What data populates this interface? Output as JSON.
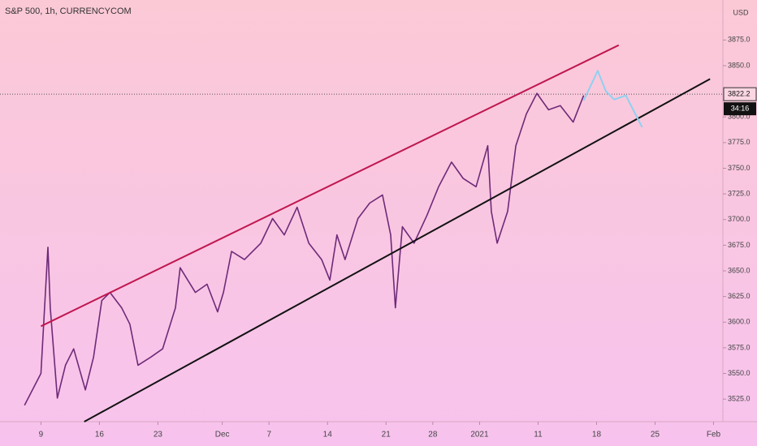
{
  "chart_data": {
    "type": "line",
    "title": "S&P 500, 1h, CURRENCYCOM",
    "currency": "USD",
    "color": "#6e2a78",
    "x": [
      -1.4,
      0,
      0.6,
      0.8,
      1.4,
      2.1,
      2.8,
      3.8,
      4.5,
      5.2,
      5.9,
      6.9,
      7.6,
      8.3,
      9.4,
      10.4,
      11.5,
      11.9,
      13.2,
      14.2,
      15.1,
      15.6,
      16.3,
      17.4,
      18.8,
      19.8,
      20.8,
      21.9,
      22.9,
      24.0,
      24.7,
      25.3,
      26.0,
      27.1,
      28.1,
      29.2,
      29.9,
      30.3,
      30.9,
      31.9,
      33.0,
      34.0,
      35.1,
      36.1,
      37.2,
      38.2,
      38.5,
      39.0,
      39.9,
      40.6,
      41.5,
      42.4,
      43.4,
      44.4,
      45.5,
      46.4
    ],
    "values": [
      3519,
      3550,
      3673,
      3614,
      3526,
      3558,
      3574,
      3534,
      3566,
      3621,
      3629,
      3614,
      3598,
      3558,
      3566,
      3574,
      3614,
      3653,
      3629,
      3637,
      3610,
      3629,
      3669,
      3661,
      3677,
      3701,
      3685,
      3712,
      3677,
      3661,
      3641,
      3685,
      3661,
      3701,
      3716,
      3724,
      3685,
      3614,
      3693,
      3677,
      3704,
      3732,
      3756,
      3740,
      3732,
      3772,
      3708,
      3677,
      3708,
      3772,
      3803,
      3823,
      3807,
      3811,
      3795,
      3821
    ],
    "trend_lines": [
      {
        "color": "#c0174f",
        "x": [
          0,
          49.4
        ],
        "values": [
          3596,
          3870
        ]
      },
      {
        "color": "#111111",
        "x": [
          3.7,
          57.2
        ],
        "values": [
          3503,
          3837
        ]
      }
    ],
    "projection": {
      "color": "#8fd0f0",
      "x": [
        46.4,
        47.6,
        48.3,
        49.0,
        50.0,
        51.4
      ],
      "values": [
        3816,
        3845,
        3825,
        3817,
        3821,
        3790
      ]
    },
    "last_price": 3822.2,
    "countdown": "34:16",
    "xlim": [
      -3.5,
      58.3
    ],
    "ylim": [
      3503,
      3914
    ],
    "xticks": [
      {
        "value": 0,
        "label": "9"
      },
      {
        "value": 5,
        "label": "16"
      },
      {
        "value": 10,
        "label": "23"
      },
      {
        "value": 15.5,
        "label": "Dec"
      },
      {
        "value": 19.5,
        "label": "7"
      },
      {
        "value": 24.5,
        "label": "14"
      },
      {
        "value": 29.5,
        "label": "21"
      },
      {
        "value": 33.5,
        "label": "28"
      },
      {
        "value": 37.5,
        "label": "2021"
      },
      {
        "value": 42.5,
        "label": "11"
      },
      {
        "value": 47.5,
        "label": "18"
      },
      {
        "value": 52.5,
        "label": "25"
      },
      {
        "value": 57.5,
        "label": "Feb"
      }
    ],
    "yticks": [
      {
        "value": 3525,
        "label": "3525.0"
      },
      {
        "value": 3550,
        "label": "3550.0"
      },
      {
        "value": 3575,
        "label": "3575.0"
      },
      {
        "value": 3600,
        "label": "3600.0"
      },
      {
        "value": 3625,
        "label": "3625.0"
      },
      {
        "value": 3650,
        "label": "3650.0"
      },
      {
        "value": 3675,
        "label": "3675.0"
      },
      {
        "value": 3700,
        "label": "3700.0"
      },
      {
        "value": 3725,
        "label": "3725.0"
      },
      {
        "value": 3750,
        "label": "3750.0"
      },
      {
        "value": 3775,
        "label": "3775.0"
      },
      {
        "value": 3800,
        "label": "3800.0"
      },
      {
        "value": 3850,
        "label": "3850.0"
      },
      {
        "value": 3875,
        "label": "3875.0"
      }
    ]
  }
}
